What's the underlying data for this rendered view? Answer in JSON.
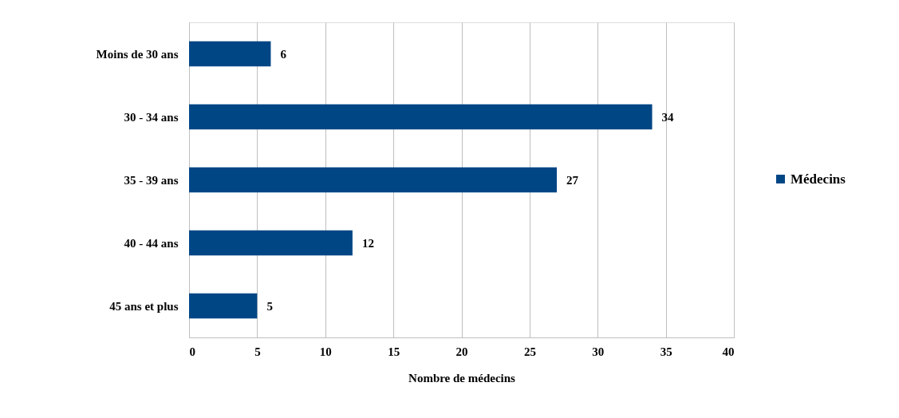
{
  "chart_data": {
    "type": "bar",
    "orientation": "horizontal",
    "categories": [
      "Moins de 30 ans",
      "30 - 34 ans",
      "35 - 39 ans",
      "40 - 44 ans",
      "45 ans et plus"
    ],
    "series": [
      {
        "name": "Médecins",
        "color": "#004685",
        "values": [
          6,
          34,
          27,
          12,
          5
        ]
      }
    ],
    "xlabel": "Nombre de médecins",
    "xlim": [
      0,
      40
    ],
    "xticks": [
      0,
      5,
      10,
      15,
      20,
      25,
      30,
      35,
      40
    ],
    "grid": "x",
    "legend": "right",
    "data_labels": true
  }
}
